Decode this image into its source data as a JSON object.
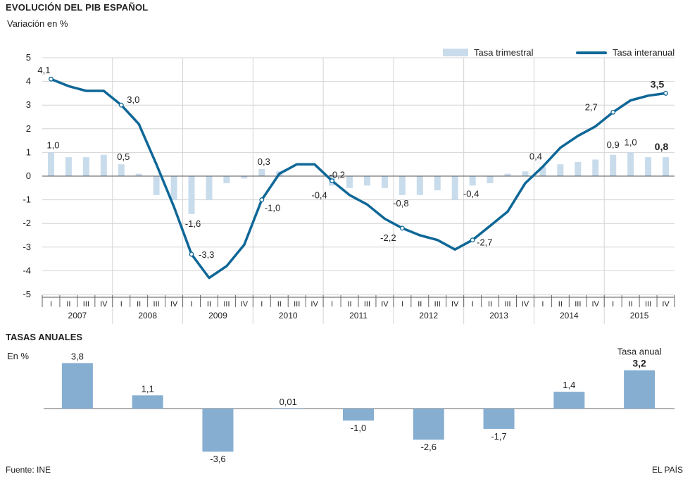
{
  "header": {
    "title": "EVOLUCIÓN DEL PIB ESPAÑOL",
    "subtitle": "Variación en %"
  },
  "legend": {
    "quarterly_label": "Tasa trimestral",
    "annual_label": "Tasa interanual"
  },
  "section2": {
    "title": "TASAS ANUALES",
    "units": "En %",
    "note": "Tasa anual"
  },
  "footer": {
    "source": "Fuente: INE",
    "brand": "EL PAÍS"
  },
  "colors": {
    "bar_quarterly": "#c9dcec",
    "line_annual": "#0e6797",
    "bar_annual": "#86aed1",
    "grid": "#d4d4d4"
  },
  "chart_data": [
    {
      "type": "bar+line",
      "ylim": [
        -5,
        5
      ],
      "yticks": [
        "5",
        "4",
        "3",
        "2",
        "1",
        "0",
        "-1",
        "-2",
        "-3",
        "-4",
        "-5"
      ],
      "quarters": [
        "I",
        "II",
        "III",
        "IV"
      ],
      "years": [
        "2007",
        "2008",
        "2009",
        "2010",
        "2011",
        "2012",
        "2013",
        "2014",
        "2015"
      ],
      "series": [
        {
          "name": "Tasa trimestral",
          "type": "bar",
          "values": [
            1.0,
            0.8,
            0.8,
            0.9,
            0.5,
            0.1,
            -0.8,
            -1.0,
            -1.6,
            -1.0,
            -0.3,
            -0.1,
            0.3,
            0.2,
            0.0,
            0.0,
            -0.4,
            -0.5,
            -0.4,
            -0.5,
            -0.8,
            -0.8,
            -0.6,
            -1.0,
            -0.4,
            -0.3,
            0.1,
            0.2,
            0.4,
            0.5,
            0.6,
            0.7,
            0.9,
            1.0,
            0.8,
            0.8
          ]
        },
        {
          "name": "Tasa interanual",
          "type": "line",
          "values": [
            4.1,
            3.8,
            3.6,
            3.6,
            3.0,
            2.2,
            0.5,
            -1.3,
            -3.3,
            -4.3,
            -3.8,
            -2.9,
            -1.0,
            0.1,
            0.5,
            0.5,
            -0.2,
            -0.8,
            -1.2,
            -1.8,
            -2.2,
            -2.5,
            -2.7,
            -3.1,
            -2.7,
            -2.1,
            -1.5,
            -0.3,
            0.4,
            1.2,
            1.7,
            2.1,
            2.7,
            3.2,
            3.4,
            3.5
          ]
        }
      ],
      "annotations": [
        {
          "series": "Tasa trimestral",
          "index": 0,
          "label": "1,0"
        },
        {
          "series": "Tasa trimestral",
          "index": 4,
          "label": "0,5"
        },
        {
          "series": "Tasa trimestral",
          "index": 8,
          "label": "-1,6"
        },
        {
          "series": "Tasa trimestral",
          "index": 12,
          "label": "0,3"
        },
        {
          "series": "Tasa trimestral",
          "index": 16,
          "label": "-0,4"
        },
        {
          "series": "Tasa trimestral",
          "index": 20,
          "label": "-0,8"
        },
        {
          "series": "Tasa trimestral",
          "index": 24,
          "label": "-0,4"
        },
        {
          "series": "Tasa trimestral",
          "index": 28,
          "label": "0,4"
        },
        {
          "series": "Tasa trimestral",
          "index": 32,
          "label": "0,9"
        },
        {
          "series": "Tasa trimestral",
          "index": 33,
          "label": "1,0"
        },
        {
          "series": "Tasa trimestral",
          "index": 35,
          "label": "0,8",
          "bold": true
        },
        {
          "series": "Tasa interanual",
          "index": 0,
          "label": "4,1"
        },
        {
          "series": "Tasa interanual",
          "index": 4,
          "label": "3,0"
        },
        {
          "series": "Tasa interanual",
          "index": 8,
          "label": "-3,3"
        },
        {
          "series": "Tasa interanual",
          "index": 12,
          "label": "-1,0"
        },
        {
          "series": "Tasa interanual",
          "index": 16,
          "label": "-0,2"
        },
        {
          "series": "Tasa interanual",
          "index": 20,
          "label": "-2,2"
        },
        {
          "series": "Tasa interanual",
          "index": 24,
          "label": "-2,7"
        },
        {
          "series": "Tasa interanual",
          "index": 32,
          "label": "2,7"
        },
        {
          "series": "Tasa interanual",
          "index": 35,
          "label": "3,5",
          "bold": true
        }
      ]
    },
    {
      "type": "bar",
      "title": "TASAS ANUALES",
      "categories": [
        "2007",
        "2008",
        "2009",
        "2010",
        "2011",
        "2012",
        "2013",
        "2014",
        "2015"
      ],
      "values": [
        3.8,
        1.1,
        -3.6,
        0.01,
        -1.0,
        -2.6,
        -1.7,
        1.4,
        3.2
      ],
      "labels": [
        "3,8",
        "1,1",
        "-3,6",
        "0,01",
        "-1,0",
        "-2,6",
        "-1,7",
        "1,4",
        "3,2"
      ]
    }
  ]
}
